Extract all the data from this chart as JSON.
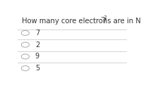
{
  "title_main": "How many core electrons are in N",
  "superscript": "−2",
  "title_end": "?",
  "options": [
    "7",
    "2",
    "9",
    "5"
  ],
  "background_color": "#ffffff",
  "text_color": "#333333",
  "circle_color": "#aaaaaa",
  "line_color": "#cccccc",
  "title_fontsize": 7.2,
  "option_fontsize": 7.0
}
